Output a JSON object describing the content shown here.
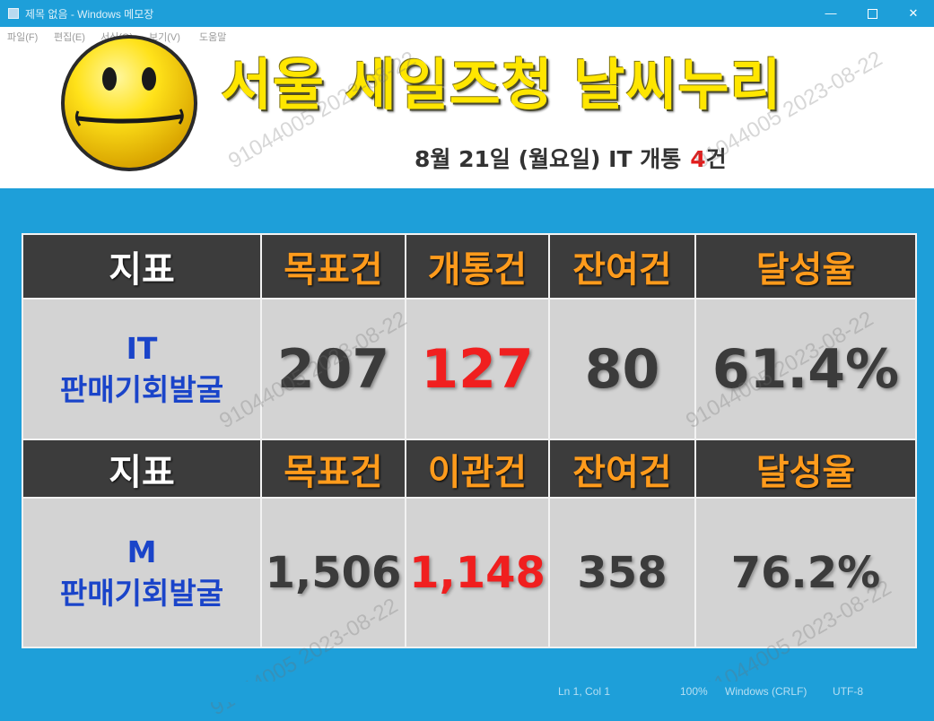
{
  "window": {
    "title": "제목 없음 - Windows 메모장",
    "minimize": "—",
    "close": "✕"
  },
  "menu": [
    "파일(F)",
    "편집(E)",
    "서식(O)",
    "보기(V)",
    "도움말"
  ],
  "header": {
    "title": "서울 세일즈청 날씨누리",
    "subtitle": "8월 21일 (월요일) IT 개통",
    "count": "4",
    "count_suffix": "건"
  },
  "table": {
    "header1": [
      "지표",
      "목표건",
      "개통건",
      "잔여건",
      "달성율"
    ],
    "row1": {
      "label_line1": "IT",
      "label_line2": "판매기회발굴",
      "values": [
        "207",
        "127",
        "80",
        "61.4%"
      ]
    },
    "header2": [
      "지표",
      "목표건",
      "이관건",
      "잔여건",
      "달성율"
    ],
    "row2": {
      "label_line1": "M",
      "label_line2": "판매기회발굴",
      "values": [
        "1,506",
        "1,148",
        "358",
        "76.2%"
      ]
    }
  },
  "watermark": "91044005 2023-08-22",
  "statusbar": {
    "position": "Ln 1, Col 1",
    "zoom": "100%",
    "line_ending": "Windows (CRLF)",
    "encoding": "UTF-8"
  },
  "colors": {
    "accent": "#1e9fd9",
    "title": "#ffe600",
    "header_text": "#ff9b1c",
    "highlight": "#f01f1f",
    "label": "#1a44c9"
  }
}
